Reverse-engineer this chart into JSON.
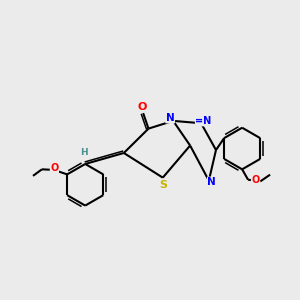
{
  "bg_color": "#ebebeb",
  "bond_color": "#000000",
  "atom_colors": {
    "O": "#ff0000",
    "S": "#c8b400",
    "N": "#0000ff",
    "H": "#4a9090",
    "C": "#000000"
  }
}
